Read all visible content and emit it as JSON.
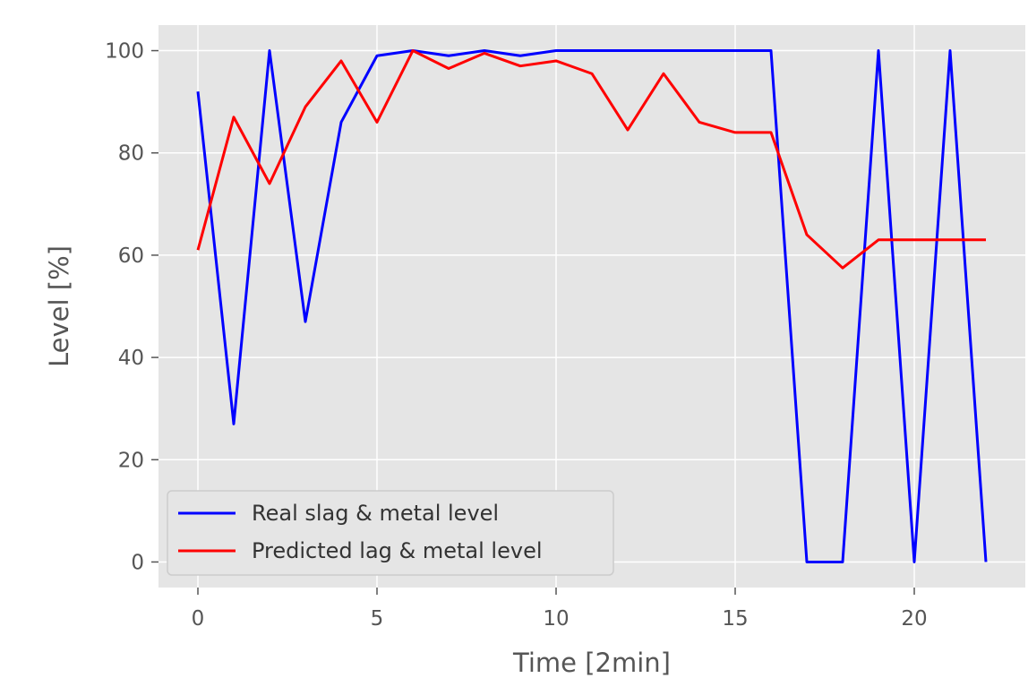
{
  "chart_data": {
    "type": "line",
    "style": "ggplot",
    "title": "",
    "xlabel": "Time [2min]",
    "ylabel": "Level [%]",
    "xlim": [
      -1.1,
      23.1
    ],
    "ylim": [
      -5,
      105
    ],
    "xticks": [
      0,
      5,
      10,
      15,
      20
    ],
    "yticks": [
      0,
      20,
      40,
      60,
      80,
      100
    ],
    "grid": true,
    "legend": {
      "location": "lower left"
    },
    "x": [
      0,
      1,
      2,
      3,
      4,
      5,
      6,
      7,
      8,
      9,
      10,
      11,
      12,
      13,
      14,
      15,
      16,
      17,
      18,
      19,
      20,
      21,
      22
    ],
    "series": [
      {
        "name": "Real slag & metal level",
        "color": "#0000ff",
        "values": [
          92,
          27,
          100,
          47,
          86,
          99,
          100,
          99,
          100,
          99,
          100,
          100,
          100,
          100,
          100,
          100,
          100,
          0,
          0,
          100,
          0,
          100,
          0
        ]
      },
      {
        "name": "Predicted lag & metal level",
        "color": "#ff0000",
        "values": [
          61,
          87,
          74,
          89,
          98,
          86,
          100,
          96.5,
          99.5,
          97,
          98,
          95.5,
          84.5,
          95.5,
          86,
          84,
          84,
          64,
          57.5,
          63,
          63,
          63,
          63
        ]
      }
    ]
  }
}
